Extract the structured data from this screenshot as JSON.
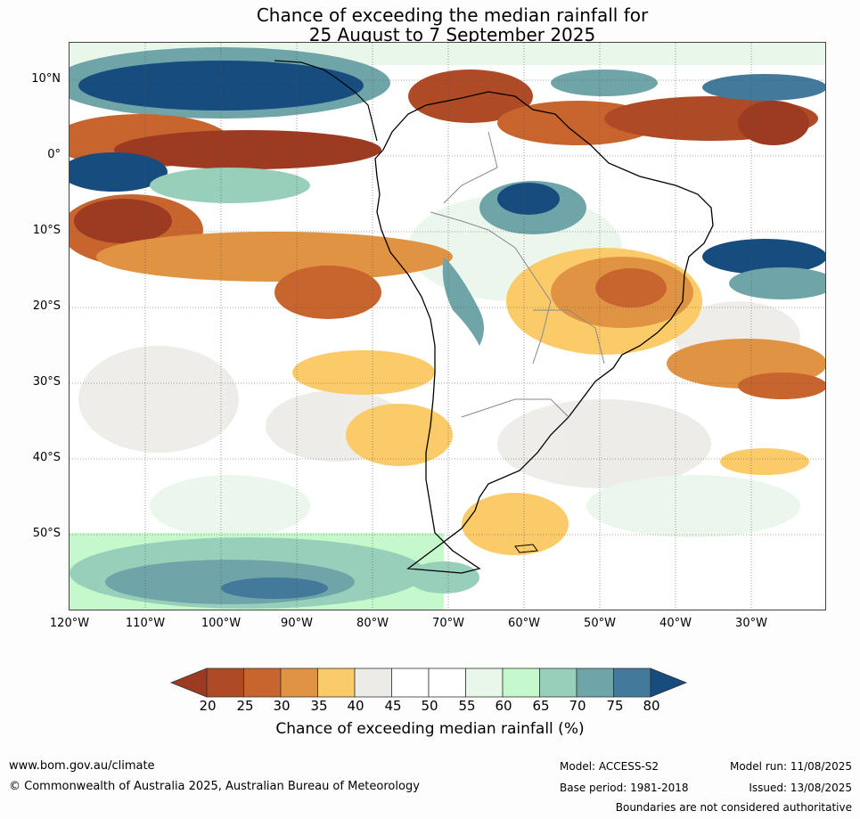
{
  "title": {
    "line1": "Chance of exceeding the median rainfall for",
    "line2": "25 August to 7 September 2025"
  },
  "map": {
    "latitude_labels": [
      "10°N",
      "0°",
      "10°S",
      "20°S",
      "30°S",
      "40°S",
      "50°S"
    ],
    "longitude_labels": [
      "120°W",
      "110°W",
      "100°W",
      "90°W",
      "80°W",
      "70°W",
      "60°W",
      "50°W",
      "40°W",
      "30°W"
    ]
  },
  "colorbar": {
    "ticks": [
      "20",
      "25",
      "30",
      "35",
      "40",
      "45",
      "50",
      "55",
      "60",
      "65",
      "70",
      "75",
      "80"
    ],
    "colors": [
      "#9c3a22",
      "#ae4a26",
      "#c8652e",
      "#e09443",
      "#fccb69",
      "#ecebe7",
      "#ffffff",
      "#ffffff",
      "#e9f6ea",
      "#c5f9cb",
      "#98cfba",
      "#6fa4a8",
      "#43799b",
      "#174c7f"
    ],
    "label": "Chance of exceeding median rainfall (%)"
  },
  "footer": {
    "website": "www.bom.gov.au/climate",
    "copyright": "© Commonwealth of Australia 2025, Australian Bureau of Meteorology",
    "model": "Model: ACCESS-S2",
    "base_period": "Base period: 1981-2018",
    "model_run": "Model run: 11/08/2025",
    "issued": "Issued: 13/08/2025",
    "disclaimer": "Boundaries are not considered authoritative"
  }
}
